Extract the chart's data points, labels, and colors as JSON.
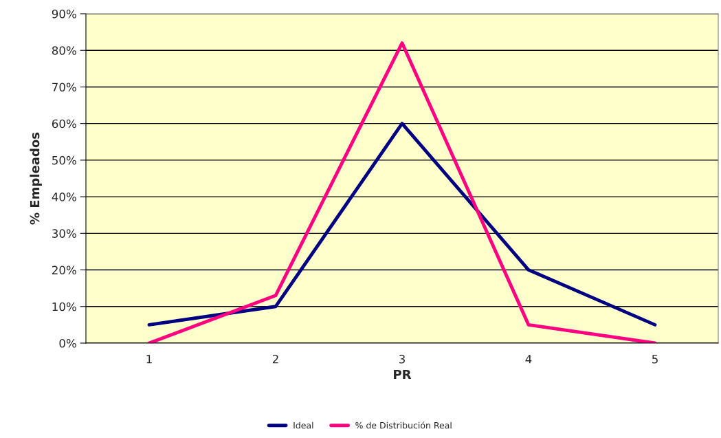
{
  "chart_data": {
    "type": "line",
    "xlabel": "PR",
    "ylabel": "% Empleados",
    "categories": [
      "1",
      "2",
      "3",
      "4",
      "5"
    ],
    "series": [
      {
        "name": "Ideal",
        "color": "#000080",
        "values": [
          5,
          10,
          60,
          20,
          5
        ]
      },
      {
        "name": "% de Distribución Real",
        "color": "#ff0080",
        "values": [
          0,
          13,
          82,
          5,
          0
        ]
      }
    ],
    "ylim": [
      0,
      90
    ],
    "yticks": [
      {
        "value": 0,
        "label": "0%"
      },
      {
        "value": 10,
        "label": "10%"
      },
      {
        "value": 20,
        "label": "20%"
      },
      {
        "value": 30,
        "label": "30%"
      },
      {
        "value": 40,
        "label": "40%"
      },
      {
        "value": 50,
        "label": "50%"
      },
      {
        "value": 60,
        "label": "60%"
      },
      {
        "value": 70,
        "label": "70%"
      },
      {
        "value": 80,
        "label": "80%"
      },
      {
        "value": 90,
        "label": "90%"
      }
    ],
    "grid": "y",
    "legend": "bottom",
    "marker": "none",
    "line_style": "solid"
  }
}
